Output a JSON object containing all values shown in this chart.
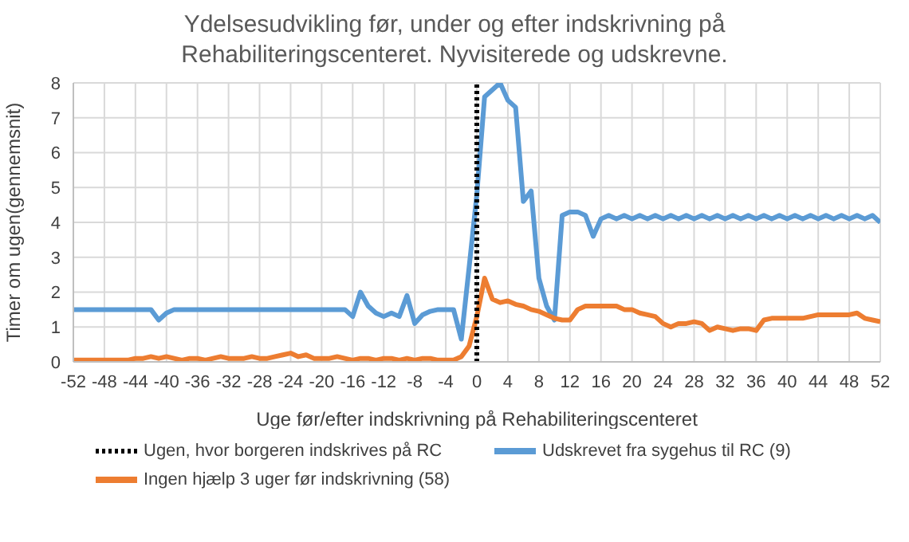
{
  "chart_data": {
    "type": "line",
    "title": "Ydelsesudvikling før, under og efter indskrivning på Rehabiliteringscenteret. Nyvisiterede og udskrevne.",
    "xlabel": "Uge før/efter  indskrivning på Rehabiliteringscenteret",
    "ylabel": "Timer om ugen(gennemsnit)",
    "x": [
      -52,
      -51,
      -50,
      -49,
      -48,
      -47,
      -46,
      -45,
      -44,
      -43,
      -42,
      -41,
      -40,
      -39,
      -38,
      -37,
      -36,
      -35,
      -34,
      -33,
      -32,
      -31,
      -30,
      -29,
      -28,
      -27,
      -26,
      -25,
      -24,
      -23,
      -22,
      -21,
      -20,
      -19,
      -18,
      -17,
      -16,
      -15,
      -14,
      -13,
      -12,
      -11,
      -10,
      -9,
      -8,
      -7,
      -6,
      -5,
      -4,
      -3,
      -2,
      -1,
      0,
      1,
      2,
      3,
      4,
      5,
      6,
      7,
      8,
      9,
      10,
      11,
      12,
      13,
      14,
      15,
      16,
      17,
      18,
      19,
      20,
      21,
      22,
      23,
      24,
      25,
      26,
      27,
      28,
      29,
      30,
      31,
      32,
      33,
      34,
      35,
      36,
      37,
      38,
      39,
      40,
      41,
      42,
      43,
      44,
      45,
      46,
      47,
      48,
      49,
      50,
      51,
      52
    ],
    "series": [
      {
        "name": "Udskrevet fra sygehus til RC (9)",
        "color": "#5b9bd5",
        "values": [
          1.5,
          1.5,
          1.5,
          1.5,
          1.5,
          1.5,
          1.5,
          1.5,
          1.5,
          1.5,
          1.5,
          1.2,
          1.4,
          1.5,
          1.5,
          1.5,
          1.5,
          1.5,
          1.5,
          1.5,
          1.5,
          1.5,
          1.5,
          1.5,
          1.5,
          1.5,
          1.5,
          1.5,
          1.5,
          1.5,
          1.5,
          1.5,
          1.5,
          1.5,
          1.5,
          1.5,
          1.3,
          2.0,
          1.6,
          1.4,
          1.3,
          1.4,
          1.3,
          1.9,
          1.1,
          1.35,
          1.45,
          1.5,
          1.5,
          1.5,
          0.65,
          2.7,
          4.8,
          7.6,
          7.8,
          8.0,
          7.5,
          7.3,
          4.6,
          4.9,
          2.4,
          1.6,
          1.2,
          4.2,
          4.3,
          4.3,
          4.2,
          3.6,
          4.1,
          4.2,
          4.1,
          4.2,
          4.1,
          4.2,
          4.1,
          4.2,
          4.1,
          4.2,
          4.1,
          4.2,
          4.1,
          4.2,
          4.1,
          4.2,
          4.1,
          4.2,
          4.1,
          4.2,
          4.1,
          4.2,
          4.1,
          4.2,
          4.1,
          4.2,
          4.1,
          4.2,
          4.1,
          4.2,
          4.1,
          4.2,
          4.1,
          4.2,
          4.1,
          4.2,
          4.0
        ]
      },
      {
        "name": "Ingen hjælp 3 uger før indskrivning (58)",
        "color": "#ed7d31",
        "values": [
          0.05,
          0.05,
          0.05,
          0.05,
          0.05,
          0.05,
          0.05,
          0.05,
          0.1,
          0.1,
          0.15,
          0.1,
          0.15,
          0.1,
          0.05,
          0.1,
          0.1,
          0.05,
          0.1,
          0.15,
          0.1,
          0.1,
          0.1,
          0.15,
          0.1,
          0.1,
          0.15,
          0.2,
          0.25,
          0.15,
          0.2,
          0.1,
          0.1,
          0.1,
          0.15,
          0.1,
          0.05,
          0.1,
          0.1,
          0.05,
          0.1,
          0.1,
          0.05,
          0.1,
          0.05,
          0.1,
          0.1,
          0.05,
          0.05,
          0.05,
          0.15,
          0.45,
          1.3,
          2.4,
          1.8,
          1.7,
          1.75,
          1.65,
          1.6,
          1.5,
          1.45,
          1.35,
          1.25,
          1.2,
          1.2,
          1.5,
          1.6,
          1.6,
          1.6,
          1.6,
          1.6,
          1.5,
          1.5,
          1.4,
          1.35,
          1.3,
          1.1,
          1.0,
          1.1,
          1.1,
          1.15,
          1.1,
          0.9,
          1.0,
          0.95,
          0.9,
          0.95,
          0.95,
          0.9,
          1.2,
          1.25,
          1.25,
          1.25,
          1.25,
          1.25,
          1.3,
          1.35,
          1.35,
          1.35,
          1.35,
          1.35,
          1.4,
          1.25,
          1.2,
          1.15
        ]
      }
    ],
    "ref_lines": [
      {
        "axis": "x",
        "value": 0,
        "label": "Ugen, hvor borgeren indskrives på RC",
        "color": "#000000",
        "line_style": "dotted"
      }
    ],
    "xlim": [
      -52,
      52
    ],
    "xticks": [
      -52,
      -48,
      -44,
      -40,
      -36,
      -32,
      -28,
      -24,
      -20,
      -16,
      -12,
      -8,
      -4,
      0,
      4,
      8,
      12,
      16,
      20,
      24,
      28,
      32,
      36,
      40,
      44,
      48,
      52
    ],
    "ylim": [
      0,
      8
    ],
    "yticks": [
      0,
      1,
      2,
      3,
      4,
      5,
      6,
      7,
      8
    ],
    "grid": true,
    "legend": "bottom",
    "marker": "none",
    "line_style": "solid"
  }
}
